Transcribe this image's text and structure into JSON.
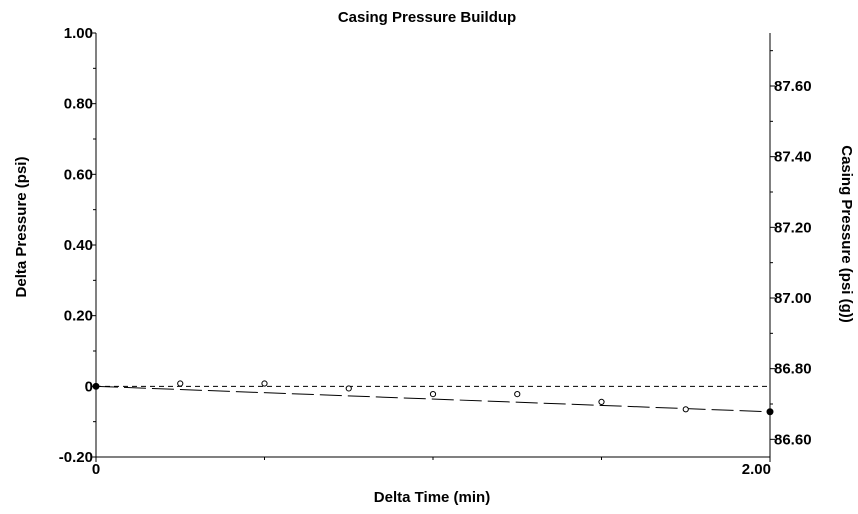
{
  "chart_data": {
    "type": "scatter",
    "title": "Casing Pressure Buildup",
    "xlabel": "Delta Time (min)",
    "ylabel": "Delta Pressure (psi)",
    "y2label": "Casing Pressure (psi (g))",
    "xlim": [
      0,
      2.0
    ],
    "ylim": [
      -0.2,
      1.0
    ],
    "y2lim": [
      86.55,
      87.75
    ],
    "x_ticks": [
      {
        "value": 0,
        "label": "0"
      },
      {
        "value": 2.0,
        "label": "2.00"
      }
    ],
    "y_ticks": [
      {
        "value": -0.2,
        "label": "-0.20"
      },
      {
        "value": 0,
        "label": "0"
      },
      {
        "value": 0.2,
        "label": "0.20"
      },
      {
        "value": 0.4,
        "label": "0.40"
      },
      {
        "value": 0.6,
        "label": "0.60"
      },
      {
        "value": 0.8,
        "label": "0.80"
      },
      {
        "value": 1.0,
        "label": "1.00"
      }
    ],
    "y2_ticks": [
      {
        "value": 86.6,
        "label": "86.60"
      },
      {
        "value": 86.8,
        "label": "86.80"
      },
      {
        "value": 87.0,
        "label": "87.00"
      },
      {
        "value": 87.2,
        "label": "87.20"
      },
      {
        "value": 87.4,
        "label": "87.40"
      },
      {
        "value": 87.6,
        "label": "87.60"
      }
    ],
    "grid": false,
    "series": [
      {
        "marker": "open-circle",
        "x": [
          0.25,
          0.5,
          0.75,
          1.0,
          1.25,
          1.5,
          1.75
        ],
        "y": [
          0.008,
          0.008,
          -0.006,
          -0.022,
          -0.022,
          -0.044,
          -0.065
        ]
      },
      {
        "marker": "filled-circle",
        "x": [
          0,
          2.0
        ],
        "y": [
          0,
          -0.072
        ]
      }
    ],
    "reference_lines": [
      {
        "style": "short-dash",
        "x": [
          0,
          2.0
        ],
        "y": [
          0,
          0
        ]
      },
      {
        "style": "long-dash",
        "x": [
          0,
          2.0
        ],
        "y": [
          0,
          -0.072
        ]
      }
    ]
  }
}
